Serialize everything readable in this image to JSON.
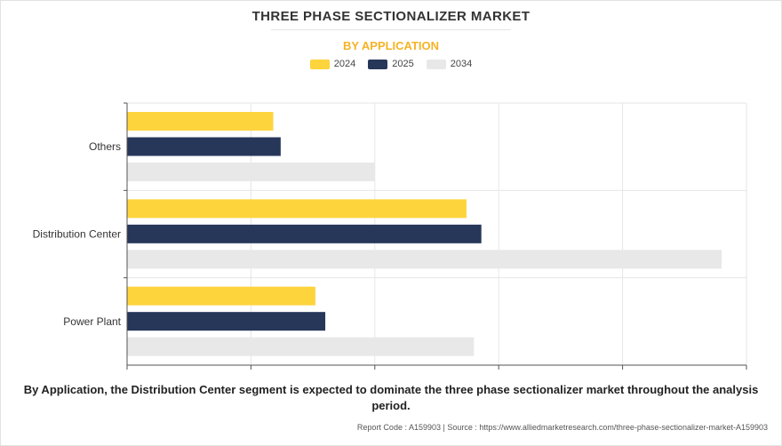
{
  "header": {
    "title": "THREE PHASE SECTIONALIZER MARKET",
    "subtitle": "BY APPLICATION"
  },
  "colors": {
    "2024": "#fdd43c",
    "2025": "#27375a",
    "2034": "#e8e8e8",
    "subtitle": "#f5b326"
  },
  "chart_data": {
    "type": "bar",
    "orientation": "horizontal",
    "title": "",
    "xlabel": "",
    "ylabel": "",
    "categories": [
      "Others",
      "Distribution Center",
      "Power Plant"
    ],
    "series": [
      {
        "name": "2024",
        "values": [
          0.59,
          1.37,
          0.76
        ]
      },
      {
        "name": "2025",
        "values": [
          0.62,
          1.43,
          0.8
        ]
      },
      {
        "name": "2034",
        "values": [
          1.0,
          2.4,
          1.4
        ]
      }
    ],
    "xlim": [
      0,
      2.5
    ],
    "x_tick_labels_shown": false,
    "grid": true,
    "legend_position": "top-center"
  },
  "footer": {
    "caption": "By Application, the Distribution Center segment is expected to dominate the three phase sectionalizer market throughout the analysis period.",
    "source": "Report Code : A159903  |  Source : https://www.alliedmarketresearch.com/three-phase-sectionalizer-market-A159903"
  }
}
